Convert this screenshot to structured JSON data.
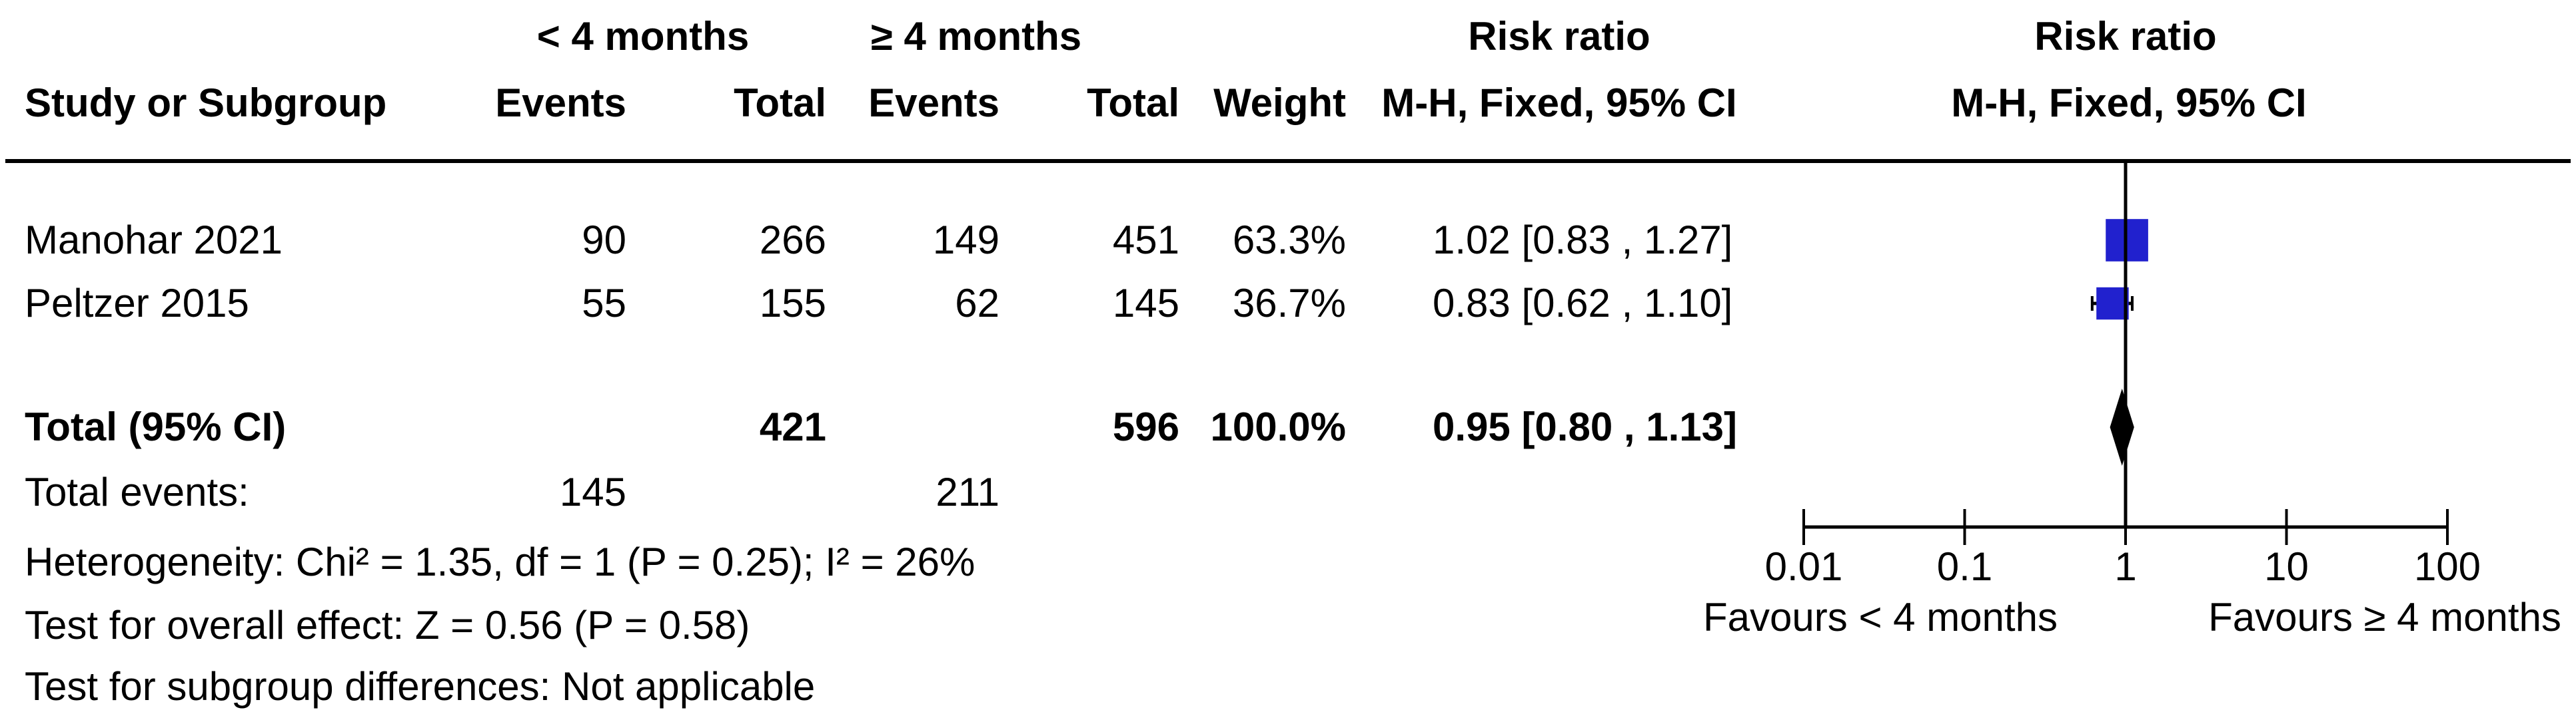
{
  "header": {
    "group1": "< 4 months",
    "group2": "≥ 4 months",
    "risk_ratio_text_col": "Risk ratio",
    "risk_ratio_plot_col": "Risk ratio",
    "study": "Study or Subgroup",
    "events1": "Events",
    "total1": "Total",
    "events2": "Events",
    "total2": "Total",
    "weight": "Weight",
    "mh_text_col": "M-H, Fixed, 95% CI",
    "mh_plot_col": "M-H, Fixed, 95% CI"
  },
  "rows": [
    {
      "study": "Manohar 2021",
      "events1": "90",
      "total1": "266",
      "events2": "149",
      "total2": "451",
      "weight": "63.3%",
      "ci_text": "1.02 [0.83 , 1.27]"
    },
    {
      "study": "Peltzer 2015",
      "events1": "55",
      "total1": "155",
      "events2": "62",
      "total2": "145",
      "weight": "36.7%",
      "ci_text": "0.83 [0.62 , 1.10]"
    }
  ],
  "total_row": {
    "label": "Total (95% CI)",
    "total1": "421",
    "total2": "596",
    "weight": "100.0%",
    "ci_text": "0.95 [0.80 , 1.13]"
  },
  "total_events": {
    "label": "Total events:",
    "events1": "145",
    "events2": "211"
  },
  "footnotes": [
    "Heterogeneity: Chi² = 1.35, df = 1 (P = 0.25); I² = 26%",
    "Test for overall effect: Z = 0.56 (P = 0.58)",
    "Test for subgroup differences: Not applicable"
  ],
  "axis": {
    "ticks": [
      "0.01",
      "0.1",
      "1",
      "10",
      "100"
    ],
    "favours_left": "Favours < 4 months",
    "favours_right": "Favours ≥ 4 months"
  },
  "chart_data": {
    "type": "forest",
    "x_scale": "log10",
    "x_ticks": [
      0.01,
      0.1,
      1,
      10,
      100
    ],
    "xlim": [
      0.01,
      100
    ],
    "effect_measure": "Risk ratio, M-H, Fixed, 95% CI",
    "studies": [
      {
        "name": "Manohar 2021",
        "rr": 1.02,
        "ci": [
          0.83,
          1.27
        ],
        "weight": 63.3
      },
      {
        "name": "Peltzer 2015",
        "rr": 0.83,
        "ci": [
          0.62,
          1.1
        ],
        "weight": 36.7
      }
    ],
    "total": {
      "label": "Total (95% CI)",
      "rr": 0.95,
      "ci": [
        0.8,
        1.13
      ]
    },
    "heterogeneity": {
      "chi2": 1.35,
      "df": 1,
      "p": 0.25,
      "i2_pct": 26
    },
    "overall_effect": {
      "z": 0.56,
      "p": 0.58
    },
    "marker_color": "#2121CE",
    "diamond_color": "#000000",
    "line_color": "#000000"
  }
}
